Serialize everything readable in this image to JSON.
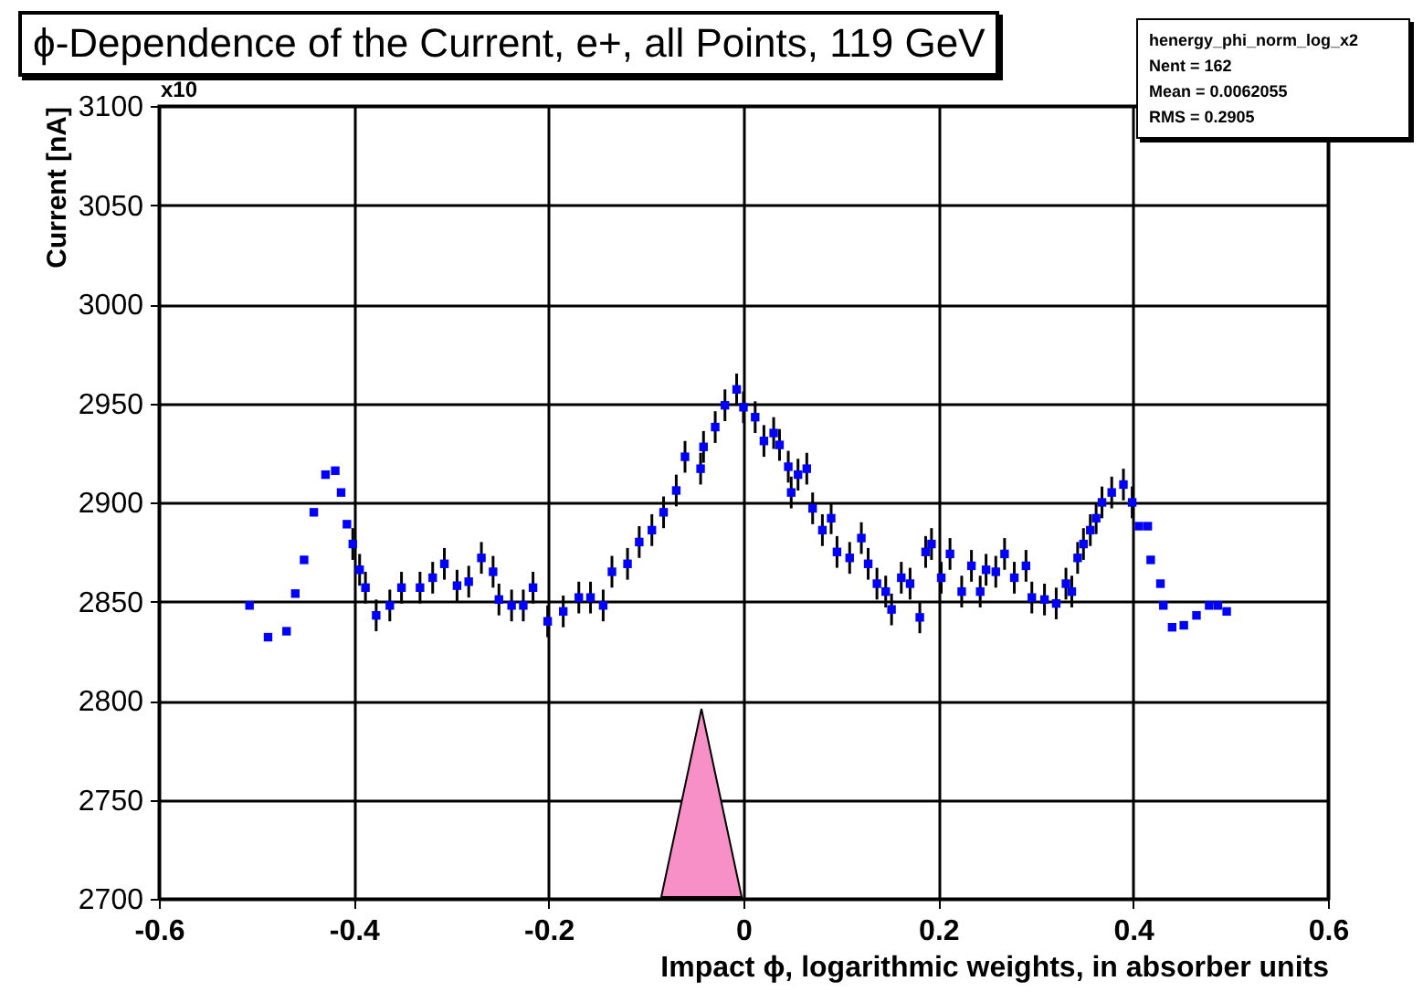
{
  "chart_data": {
    "type": "scatter",
    "title": "ϕ-Dependence of the Current, e+, all Points, 119 GeV",
    "xlabel": "Impact ϕ, logarithmic weights, in absorber units",
    "ylabel": "Current [nA]",
    "annotations": [
      "x10",
      "henergy_phi_norm_log_x2",
      "Nent = 162",
      "Mean = 0.0062055",
      "RMS = 0.2905"
    ],
    "xlim": [
      -0.6,
      0.6
    ],
    "xticks": [
      -0.6,
      -0.4,
      -0.2,
      0,
      0.2,
      0.4,
      0.6
    ],
    "ylim": [
      2700,
      3100
    ],
    "yticks": [
      2700,
      2750,
      2800,
      2850,
      2900,
      2950,
      3000,
      3050,
      3100
    ],
    "grid": true,
    "marker": "square",
    "series": [
      {
        "color": "#0000ff",
        "x": [
          -0.507,
          -0.488,
          -0.469,
          -0.46,
          -0.451,
          -0.441,
          -0.429,
          -0.419,
          -0.413,
          -0.407,
          -0.401,
          -0.394,
          -0.388,
          -0.377,
          -0.363,
          -0.351,
          -0.332,
          -0.319,
          -0.307,
          -0.294,
          -0.282,
          -0.269,
          -0.257,
          -0.251,
          -0.238,
          -0.226,
          -0.216,
          -0.201,
          -0.185,
          -0.169,
          -0.157,
          -0.144,
          -0.135,
          -0.119,
          -0.107,
          -0.094,
          -0.082,
          -0.069,
          -0.06,
          -0.044,
          -0.041,
          -0.029,
          -0.019,
          -0.007,
          0.0,
          0.012,
          0.021,
          0.031,
          0.037,
          0.046,
          0.049,
          0.056,
          0.065,
          0.071,
          0.081,
          0.09,
          0.096,
          0.109,
          0.121,
          0.128,
          0.137,
          0.146,
          0.152,
          0.162,
          0.171,
          0.181,
          0.187,
          0.193,
          0.203,
          0.212,
          0.224,
          0.234,
          0.243,
          0.249,
          0.259,
          0.268,
          0.278,
          0.29,
          0.296,
          0.309,
          0.321,
          0.331,
          0.337,
          0.343,
          0.349,
          0.356,
          0.362,
          0.368,
          0.378,
          0.39,
          0.399,
          0.406,
          0.415,
          0.418,
          0.428,
          0.431,
          0.44,
          0.452,
          0.465,
          0.478,
          0.487,
          0.496
        ],
        "values": [
          2848,
          2832,
          2835,
          2854,
          2871,
          2895,
          2914,
          2916,
          2905,
          2889,
          2879,
          2866,
          2857,
          2843,
          2848,
          2857,
          2857,
          2862,
          2869,
          2858,
          2860,
          2872,
          2865,
          2851,
          2848,
          2848,
          2857,
          2840,
          2845,
          2852,
          2852,
          2848,
          2865,
          2869,
          2880,
          2886,
          2895,
          2906,
          2923,
          2917,
          2928,
          2938,
          2949,
          2957,
          2948,
          2943,
          2931,
          2935,
          2929,
          2918,
          2905,
          2914,
          2917,
          2897,
          2886,
          2892,
          2875,
          2872,
          2882,
          2869,
          2859,
          2855,
          2846,
          2862,
          2859,
          2842,
          2875,
          2879,
          2862,
          2874,
          2855,
          2868,
          2855,
          2866,
          2865,
          2874,
          2862,
          2868,
          2852,
          2851,
          2849,
          2859,
          2855,
          2872,
          2879,
          2886,
          2892,
          2900,
          2905,
          2909,
          2900,
          2888,
          2888,
          2871,
          2859,
          2848,
          2837,
          2838,
          2843,
          2848,
          2848,
          2845
        ],
        "errors": [
          null,
          null,
          null,
          null,
          null,
          null,
          null,
          null,
          null,
          null,
          8,
          8,
          8,
          8,
          8,
          8,
          8,
          8,
          8,
          8,
          8,
          8,
          8,
          8,
          8,
          8,
          8,
          8,
          8,
          8,
          8,
          8,
          8,
          8,
          8,
          8,
          8,
          8,
          8,
          8,
          8,
          8,
          8,
          8,
          8,
          8,
          8,
          8,
          8,
          8,
          8,
          8,
          8,
          8,
          8,
          8,
          8,
          8,
          8,
          8,
          8,
          8,
          8,
          8,
          8,
          8,
          8,
          8,
          8,
          8,
          8,
          8,
          8,
          8,
          8,
          8,
          8,
          8,
          8,
          8,
          8,
          8,
          8,
          8,
          8,
          8,
          8,
          8,
          8,
          8,
          8,
          null,
          null,
          null,
          null,
          null,
          null,
          null,
          null,
          null,
          null,
          null
        ]
      }
    ]
  }
}
